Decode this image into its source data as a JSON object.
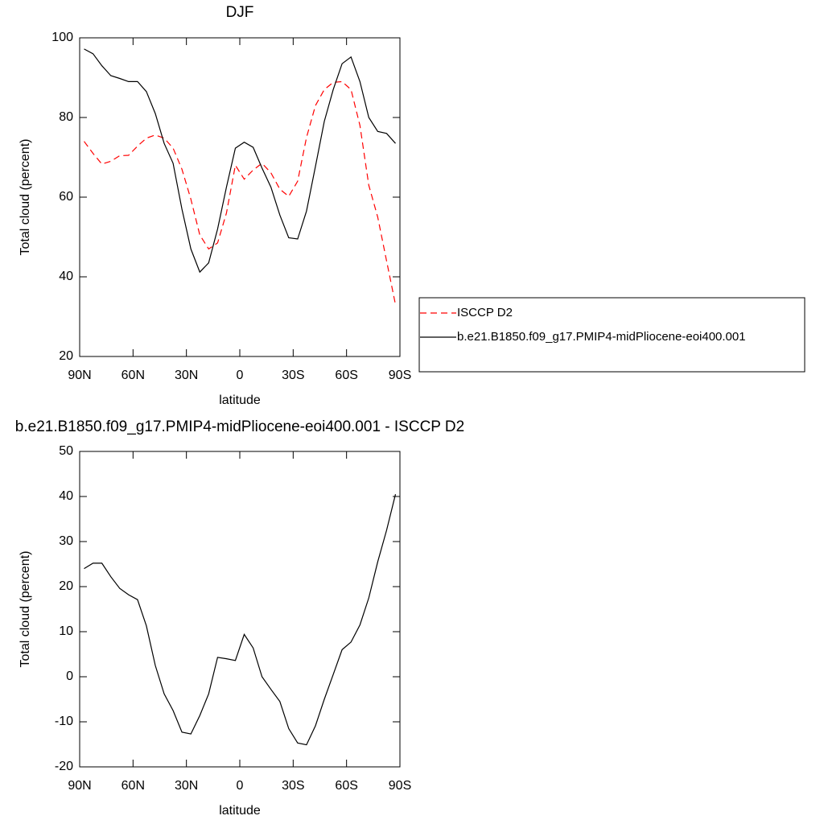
{
  "chart_data": [
    {
      "type": "line",
      "title": "DJF",
      "xlabel": "latitude",
      "ylabel": "Total cloud (percent)",
      "x": [
        87.5,
        82.5,
        77.5,
        72.5,
        67.5,
        62.5,
        57.5,
        52.5,
        47.5,
        42.5,
        37.5,
        32.5,
        27.5,
        22.5,
        17.5,
        12.5,
        7.5,
        2.5,
        -2.5,
        -7.5,
        -12.5,
        -17.5,
        -22.5,
        -27.5,
        -32.5,
        -37.5,
        -42.5,
        -47.5,
        -52.5,
        -57.5,
        -62.5,
        -67.5,
        -72.5,
        -77.5,
        -82.5,
        -87.5
      ],
      "xlim": [
        90,
        -90
      ],
      "xticks": [
        {
          "value": 90,
          "label": "90N"
        },
        {
          "value": 60,
          "label": "60N"
        },
        {
          "value": 30,
          "label": "30N"
        },
        0,
        {
          "value": -30,
          "label": "30S"
        },
        {
          "value": -60,
          "label": "60S"
        },
        {
          "value": -90,
          "label": "90S"
        }
      ],
      "ylim": [
        20,
        100
      ],
      "yticks": [
        20,
        40,
        60,
        80,
        100
      ],
      "legend": "outside-right",
      "series": [
        {
          "name": "ISCCP D2",
          "color": "#ff0000",
          "dashed": true,
          "values": [
            74,
            71,
            68.3,
            69,
            70.4,
            70.5,
            72.8,
            74.8,
            75.6,
            74.8,
            72.3,
            67,
            59.5,
            50.5,
            47,
            48.5,
            56,
            68,
            64.5,
            66.8,
            68.5,
            66.1,
            62,
            60.2,
            64,
            75,
            83,
            87,
            88.8,
            89,
            87,
            78,
            63,
            55,
            44,
            33
          ]
        },
        {
          "name": "b.e21.B1850.f09_g17.PMIP4-midPliocene-eoi400.001",
          "color": "#000000",
          "dashed": false,
          "values": [
            97.2,
            96,
            93,
            90.5,
            89.8,
            89,
            89,
            86.5,
            81,
            73.5,
            68.5,
            57,
            47,
            41.2,
            43.5,
            52,
            62.5,
            72.3,
            73.8,
            72.5,
            67.3,
            62.5,
            55.5,
            49.8,
            49.5,
            56.5,
            67.7,
            79,
            87,
            93.5,
            95.2,
            89,
            80,
            76.5,
            76,
            73.5
          ]
        }
      ]
    },
    {
      "type": "line",
      "title": "b.e21.B1850.f09_g17.PMIP4-midPliocene-eoi400.001 - ISCCP D2",
      "xlabel": "latitude",
      "ylabel": "Total cloud (percent)",
      "x": [
        87.5,
        82.5,
        77.5,
        72.5,
        67.5,
        62.5,
        57.5,
        52.5,
        47.5,
        42.5,
        37.5,
        32.5,
        27.5,
        22.5,
        17.5,
        12.5,
        7.5,
        2.5,
        -2.5,
        -7.5,
        -12.5,
        -17.5,
        -22.5,
        -27.5,
        -32.5,
        -37.5,
        -42.5,
        -47.5,
        -52.5,
        -57.5,
        -62.5,
        -67.5,
        -72.5,
        -77.5,
        -82.5,
        -87.5
      ],
      "xlim": [
        90,
        -90
      ],
      "xticks": [
        {
          "value": 90,
          "label": "90N"
        },
        {
          "value": 60,
          "label": "60N"
        },
        {
          "value": 30,
          "label": "30N"
        },
        0,
        {
          "value": -30,
          "label": "30S"
        },
        {
          "value": -60,
          "label": "60S"
        },
        {
          "value": -90,
          "label": "90S"
        }
      ],
      "ylim": [
        -20,
        50
      ],
      "yticks": [
        -20,
        -10,
        0,
        10,
        20,
        30,
        40,
        50
      ],
      "color": "#000000",
      "values": [
        24,
        25.2,
        25.2,
        22.2,
        19.6,
        18.2,
        17.1,
        11.3,
        2.5,
        -3.8,
        -7.5,
        -12.3,
        -12.7,
        -8.6,
        -3.8,
        4.3,
        4,
        3.6,
        9.4,
        6.4,
        0,
        -2.8,
        -5.5,
        -11.5,
        -14.7,
        -15.1,
        -10.9,
        -5,
        0.5,
        6,
        7.7,
        11.5,
        17.5,
        25.5,
        32.5,
        40.5
      ]
    }
  ]
}
